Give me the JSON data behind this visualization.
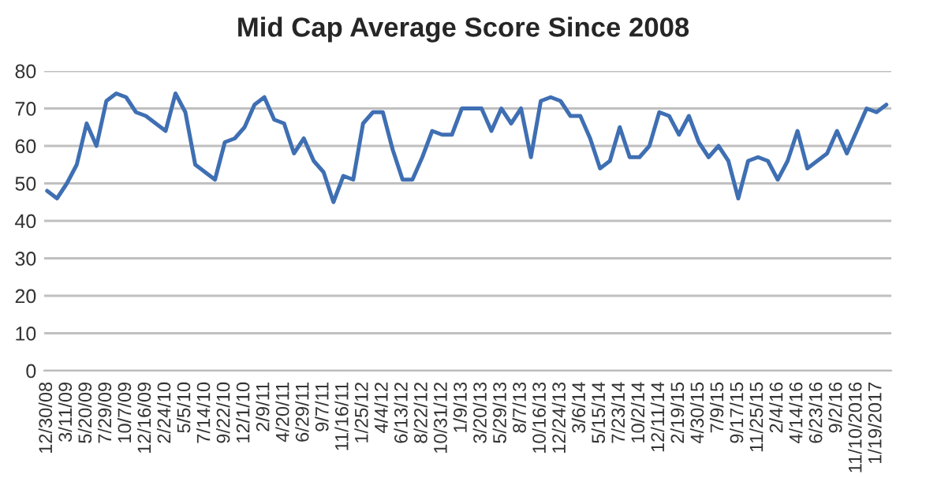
{
  "chart_data": {
    "type": "line",
    "title": "Mid Cap Average Score Since 2008",
    "categories": [
      "12/30/08",
      null,
      "3/11/09",
      null,
      "5/20/09",
      null,
      "7/29/09",
      null,
      "10/7/09",
      null,
      "12/16/09",
      null,
      "2/24/10",
      null,
      "5/5/10",
      null,
      "7/14/10",
      null,
      "9/22/10",
      null,
      "12/1/10",
      null,
      "2/9/11",
      null,
      "4/20/11",
      null,
      "6/29/11",
      null,
      "9/7/11",
      null,
      "11/16/11",
      null,
      "1/25/12",
      null,
      "4/4/12",
      null,
      "6/13/12",
      null,
      "8/22/12",
      null,
      "10/31/12",
      null,
      "1/9/13",
      null,
      "3/20/13",
      null,
      "5/29/13",
      null,
      "8/7/13",
      null,
      "10/16/13",
      null,
      "12/24/13",
      null,
      "3/6/14",
      null,
      "5/15/14",
      null,
      "7/23/14",
      null,
      "10/2/14",
      null,
      "12/11/14",
      null,
      "2/19/15",
      null,
      "4/30/15",
      null,
      "7/9/15",
      null,
      "9/17/15",
      null,
      "11/25/15",
      null,
      "2/4/16",
      null,
      "4/14/16",
      null,
      "6/23/16",
      null,
      "9/2/16",
      null,
      "11/10/2016",
      null,
      "1/19/2017",
      null
    ],
    "series": [
      {
        "color": "#3f6fb3",
        "values": [
          48,
          46,
          50,
          55,
          66,
          60,
          72,
          74,
          73,
          69,
          68,
          66,
          64,
          74,
          69,
          55,
          53,
          51,
          61,
          62,
          65,
          71,
          73,
          67,
          66,
          58,
          62,
          56,
          53,
          45,
          52,
          51,
          66,
          69,
          69,
          59,
          51,
          51,
          57,
          64,
          63,
          63,
          70,
          70,
          70,
          64,
          70,
          66,
          70,
          57,
          72,
          73,
          72,
          68,
          68,
          62,
          54,
          56,
          65,
          57,
          57,
          60,
          69,
          68,
          63,
          68,
          61,
          57,
          60,
          56,
          46,
          56,
          57,
          56,
          51,
          56,
          64,
          54,
          56,
          58,
          64,
          58,
          64,
          70,
          69,
          71
        ]
      }
    ],
    "ylim": [
      0,
      80
    ],
    "yticks": [
      0,
      10,
      20,
      30,
      40,
      50,
      60,
      70,
      80
    ],
    "grid": "y",
    "legend": false,
    "marker": "none",
    "line_style": "solid"
  }
}
